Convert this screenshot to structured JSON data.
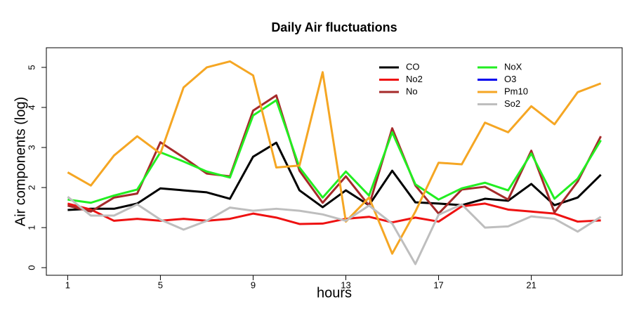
{
  "chart_data": {
    "type": "line",
    "title": "Daily Air fluctuations",
    "x_label": "hours",
    "y_label": "Air components (log)",
    "x": [
      1,
      2,
      3,
      4,
      5,
      6,
      7,
      8,
      9,
      10,
      11,
      12,
      13,
      14,
      15,
      16,
      17,
      18,
      19,
      20,
      21,
      22,
      23,
      24
    ],
    "xlim": [
      0.08,
      24.92
    ],
    "xticks": [
      1,
      5,
      9,
      13,
      17,
      21
    ],
    "ylim": [
      -0.19,
      5.49
    ],
    "yticks": [
      0,
      1,
      2,
      3,
      4,
      5
    ],
    "legend": "top-right",
    "series": [
      {
        "name": "CO",
        "color": "#000000",
        "values": [
          1.44,
          1.47,
          1.47,
          1.6,
          1.98,
          1.93,
          1.88,
          1.72,
          2.77,
          3.12,
          1.93,
          1.51,
          1.93,
          1.56,
          2.42,
          1.63,
          1.6,
          1.56,
          1.72,
          1.67,
          2.09,
          1.56,
          1.75,
          2.32
        ]
      },
      {
        "name": "No2",
        "color": "#ee1111",
        "values": [
          1.6,
          1.45,
          1.17,
          1.22,
          1.17,
          1.22,
          1.17,
          1.22,
          1.35,
          1.25,
          1.09,
          1.1,
          1.22,
          1.27,
          1.13,
          1.25,
          1.15,
          1.53,
          1.6,
          1.45,
          1.4,
          1.35,
          1.15,
          1.18
        ]
      },
      {
        "name": "No",
        "color": "#a52a2a",
        "values": [
          1.55,
          1.4,
          1.75,
          1.85,
          3.13,
          2.75,
          2.35,
          2.28,
          3.92,
          4.3,
          2.42,
          1.62,
          2.28,
          1.55,
          3.48,
          2.05,
          1.35,
          1.95,
          2.02,
          1.7,
          2.92,
          1.38,
          2.15,
          3.28
        ]
      },
      {
        "name": "NoX",
        "color": "#22ee22",
        "values": [
          1.7,
          1.62,
          1.8,
          1.95,
          2.88,
          2.65,
          2.4,
          2.25,
          3.8,
          4.18,
          2.5,
          1.75,
          2.4,
          1.8,
          3.38,
          2.08,
          1.7,
          1.98,
          2.12,
          1.93,
          2.85,
          1.72,
          2.22,
          3.18
        ]
      },
      {
        "name": "O3",
        "color": "#0000ee",
        "values": [
          null,
          null,
          null,
          null,
          null,
          null,
          null,
          null,
          null,
          null,
          null,
          null,
          null,
          null,
          null,
          null,
          null,
          null,
          null,
          null,
          null,
          null,
          null,
          null
        ]
      },
      {
        "name": "Pm10",
        "color": "#f5a623",
        "values": [
          2.38,
          2.05,
          2.8,
          3.28,
          2.85,
          4.5,
          5.0,
          5.15,
          4.8,
          2.5,
          2.55,
          4.88,
          1.15,
          1.75,
          0.35,
          1.4,
          2.62,
          2.58,
          3.62,
          3.38,
          4.03,
          3.58,
          4.38,
          4.6
        ]
      },
      {
        "name": "So2",
        "color": "#bebebe",
        "values": [
          1.77,
          1.3,
          1.3,
          1.58,
          1.2,
          0.95,
          1.17,
          1.5,
          1.42,
          1.47,
          1.42,
          1.33,
          1.17,
          1.55,
          1.1,
          0.09,
          1.32,
          1.58,
          1.0,
          1.03,
          1.28,
          1.22,
          0.9,
          1.27
        ]
      }
    ]
  }
}
